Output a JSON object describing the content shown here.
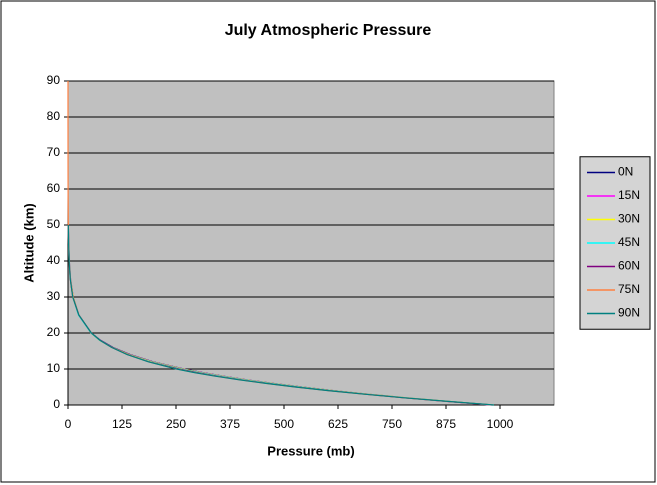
{
  "chart_data": {
    "type": "line",
    "title": "July Atmospheric Pressure",
    "x_label": "Pressure (mb)",
    "y_label": "Altitude (km)",
    "xlim": [
      0,
      1125
    ],
    "xticks": [
      0,
      125,
      250,
      375,
      500,
      625,
      750,
      875,
      1000
    ],
    "ylim": [
      0,
      90
    ],
    "yticks": [
      0,
      10,
      20,
      30,
      40,
      50,
      60,
      70,
      80,
      90
    ],
    "grid": true,
    "legend": "right",
    "series": [
      {
        "name": "0N",
        "color": "#000080",
        "x": [
          982,
          880,
          783,
          695,
          614,
          541,
          474,
          414,
          360,
          312,
          268,
          197,
          144,
          104,
          75,
          54,
          25,
          12,
          5.8,
          3,
          1.6,
          0.8
        ],
        "values": [
          0,
          1,
          2,
          3,
          4,
          5,
          6,
          7,
          8,
          9,
          10,
          12,
          14,
          16,
          18,
          20,
          25,
          30,
          35,
          40,
          45,
          50
        ]
      },
      {
        "name": "15N",
        "color": "#ff00ff",
        "x": [
          980,
          878,
          781,
          693,
          612,
          539,
          472,
          412,
          358,
          310,
          266,
          195,
          142,
          102,
          74,
          53,
          25,
          12,
          5.7,
          2.9,
          1.5,
          0.8
        ],
        "values": [
          0,
          1,
          2,
          3,
          4,
          5,
          6,
          7,
          8,
          9,
          10,
          12,
          14,
          16,
          18,
          20,
          25,
          30,
          35,
          40,
          45,
          50
        ]
      },
      {
        "name": "30N",
        "color": "#ffff00",
        "x": [
          984,
          882,
          784,
          695,
          613,
          539,
          472,
          411,
          357,
          308,
          265,
          194,
          141,
          102,
          73,
          53,
          25,
          12,
          5.7,
          2.9,
          1.5,
          0.8
        ],
        "values": [
          0,
          1,
          2,
          3,
          4,
          5,
          6,
          7,
          8,
          9,
          10,
          12,
          14,
          16,
          18,
          20,
          25,
          30,
          35,
          40,
          45,
          50
        ]
      },
      {
        "name": "45N",
        "color": "#00ffff",
        "x": [
          985,
          881,
          782,
          692,
          610,
          536,
          468,
          407,
          353,
          304,
          261,
          191,
          139,
          101,
          73,
          53,
          24,
          11,
          5.5,
          2.8,
          1.5,
          0.8
        ],
        "values": [
          0,
          1,
          2,
          3,
          4,
          5,
          6,
          7,
          8,
          9,
          10,
          12,
          14,
          16,
          18,
          20,
          25,
          30,
          35,
          40,
          45,
          50
        ]
      },
      {
        "name": "60N",
        "color": "#800080",
        "x": [
          983,
          877,
          778,
          688,
          605,
          530,
          462,
          401,
          347,
          299,
          257,
          188,
          138,
          101,
          74,
          54,
          25,
          11,
          5.4,
          2.7,
          1.4,
          0.7
        ],
        "values": [
          0,
          1,
          2,
          3,
          4,
          5,
          6,
          7,
          8,
          9,
          10,
          12,
          14,
          16,
          18,
          20,
          25,
          30,
          35,
          40,
          45,
          50
        ]
      },
      {
        "name": "75N",
        "color": "#ff8040",
        "x": [
          985,
          878,
          778,
          686,
          603,
          527,
          459,
          398,
          343,
          295,
          253,
          187,
          138,
          101,
          74,
          54,
          25,
          11,
          5.3,
          2.6,
          1.3,
          0.7,
          0.17,
          0.04,
          0.009,
          0.002
        ],
        "values": [
          0,
          1,
          2,
          3,
          4,
          5,
          6,
          7,
          8,
          9,
          10,
          12,
          14,
          16,
          18,
          20,
          25,
          30,
          35,
          40,
          45,
          50,
          60,
          70,
          80,
          90
        ]
      },
      {
        "name": "90N",
        "color": "#008080",
        "x": [
          986,
          879,
          778,
          686,
          602,
          526,
          458,
          396,
          341,
          293,
          251,
          186,
          137,
          101,
          74,
          54,
          25,
          11,
          5.2,
          2.6,
          1.3,
          0.7
        ],
        "values": [
          0,
          1,
          2,
          3,
          4,
          5,
          6,
          7,
          8,
          9,
          10,
          12,
          14,
          16,
          18,
          20,
          25,
          30,
          35,
          40,
          45,
          50
        ]
      }
    ]
  }
}
